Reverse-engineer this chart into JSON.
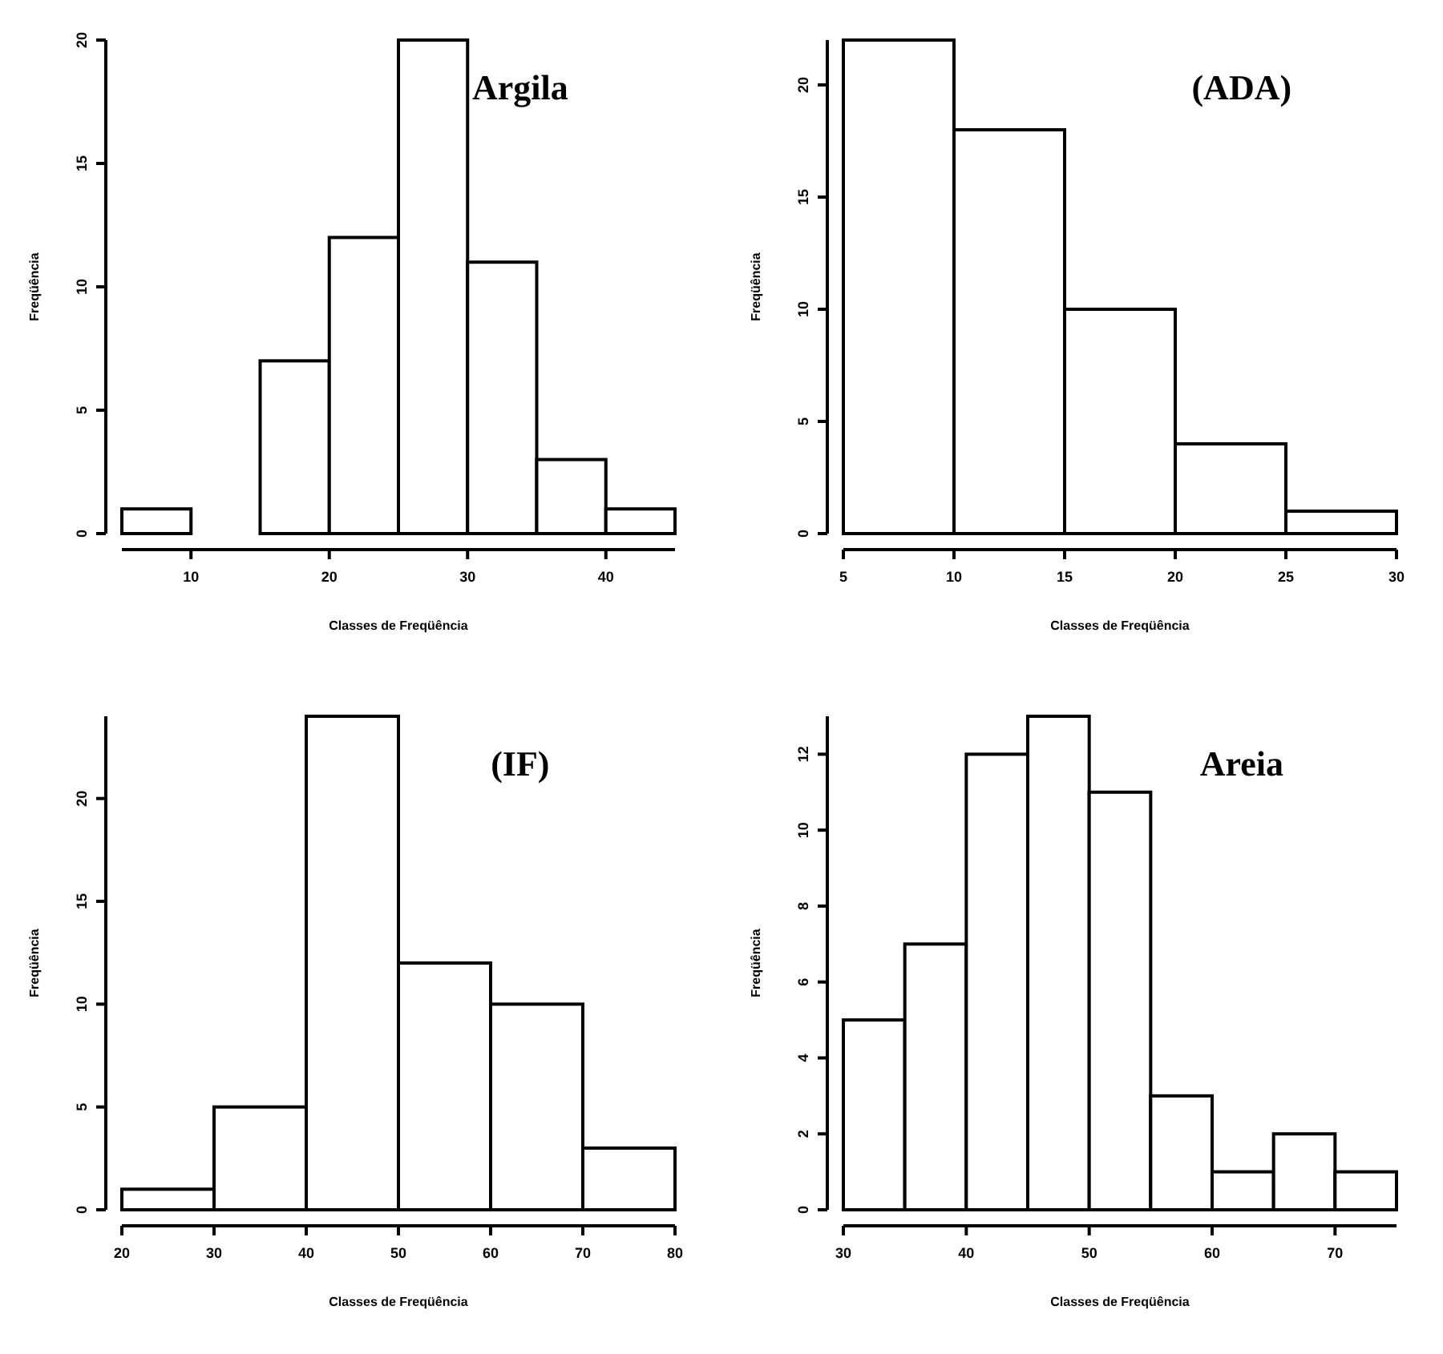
{
  "chart_data": [
    {
      "type": "histogram",
      "title": "Argila",
      "xlabel": "Classes de Freqüência",
      "ylabel": "Freqüência",
      "bins": [
        5,
        10,
        15,
        20,
        25,
        30,
        35,
        40,
        45
      ],
      "values": [
        1,
        0,
        7,
        12,
        20,
        11,
        3,
        1
      ],
      "color": "#ffffff",
      "xlim": [
        5,
        45
      ],
      "xticks": [
        10,
        20,
        30,
        40
      ],
      "ylim": [
        0,
        20
      ],
      "yticks": [
        0,
        5,
        10,
        15,
        20
      ],
      "grid": false
    },
    {
      "type": "histogram",
      "title": "(ADA)",
      "xlabel": "Classes de Freqüência",
      "ylabel": "Freqüência",
      "bins": [
        5,
        10,
        15,
        20,
        25,
        30
      ],
      "values": [
        22,
        18,
        10,
        4,
        1
      ],
      "color": "#ffffff",
      "xlim": [
        5,
        30
      ],
      "xticks": [
        5,
        10,
        15,
        20,
        25,
        30
      ],
      "ylim": [
        0,
        22
      ],
      "yticks": [
        0,
        5,
        10,
        15,
        20
      ],
      "grid": false
    },
    {
      "type": "histogram",
      "title": "(IF)",
      "xlabel": "Classes de Freqüência",
      "ylabel": "Freqüência",
      "bins": [
        20,
        30,
        40,
        50,
        60,
        70,
        80
      ],
      "values": [
        1,
        5,
        24,
        12,
        10,
        3
      ],
      "color": "#ffffff",
      "xlim": [
        20,
        80
      ],
      "xticks": [
        20,
        30,
        40,
        50,
        60,
        70,
        80
      ],
      "ylim": [
        0,
        24
      ],
      "yticks": [
        0,
        5,
        10,
        15,
        20
      ],
      "grid": false
    },
    {
      "type": "histogram",
      "title": "Areia",
      "xlabel": "Classes de Freqüência",
      "ylabel": "Freqüência",
      "bins": [
        30,
        35,
        40,
        45,
        50,
        55,
        60,
        65,
        70,
        75
      ],
      "values": [
        5,
        7,
        12,
        13,
        11,
        3,
        1,
        2,
        1
      ],
      "color": "#ffffff",
      "xlim": [
        30,
        75
      ],
      "xticks": [
        30,
        40,
        50,
        60,
        70
      ],
      "ylim": [
        0,
        13
      ],
      "yticks": [
        0,
        2,
        4,
        6,
        8,
        10,
        12
      ],
      "grid": false
    }
  ]
}
